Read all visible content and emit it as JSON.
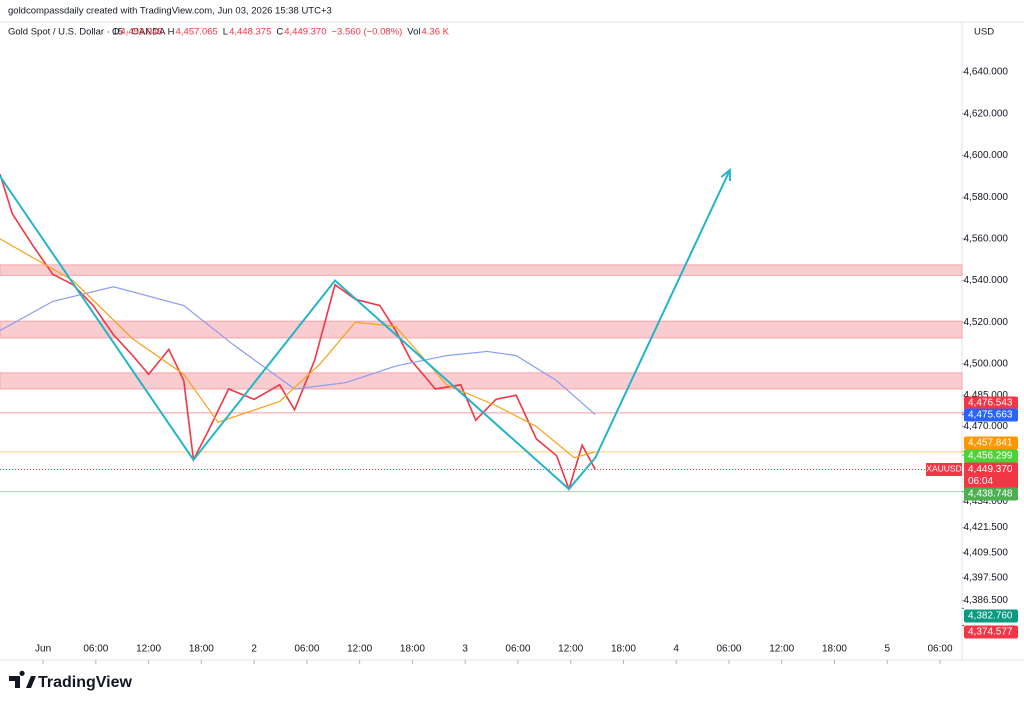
{
  "chart_data": {
    "type": "line",
    "attribution": "goldcompassdaily created with TradingView.com, Jun 03, 2026 15:38 UTC+3",
    "title": "Gold Spot / U.S. Dollar · 15 · OANDA",
    "ohlc": [
      {
        "key": "O",
        "text": "4,453.045"
      },
      {
        "key": "H",
        "text": "4,457.065"
      },
      {
        "key": "L",
        "text": "4,448.375"
      },
      {
        "key": "C",
        "text": "4,449.370"
      }
    ],
    "change": "−3.560 (−0.08%)",
    "volume_key": "Vol",
    "volume": "4.36 K",
    "currency": "USD",
    "brand": "TradingView",
    "xlim": [
      -4.9,
      104.5
    ],
    "ylim": [
      4358,
      4664
    ],
    "xticks": [
      {
        "value": 0,
        "label": "Jun"
      },
      {
        "value": 6,
        "label": "06:00"
      },
      {
        "value": 12,
        "label": "12:00"
      },
      {
        "value": 18,
        "label": "18:00"
      },
      {
        "value": 24,
        "label": "2"
      },
      {
        "value": 30,
        "label": "06:00"
      },
      {
        "value": 36,
        "label": "12:00"
      },
      {
        "value": 42,
        "label": "18:00"
      },
      {
        "value": 48,
        "label": "3"
      },
      {
        "value": 54,
        "label": "06:00"
      },
      {
        "value": 60,
        "label": "12:00"
      },
      {
        "value": 66,
        "label": "18:00"
      },
      {
        "value": 72,
        "label": "4"
      },
      {
        "value": 78,
        "label": "06:00"
      },
      {
        "value": 84,
        "label": "12:00"
      },
      {
        "value": 90,
        "label": "18:00"
      },
      {
        "value": 96,
        "label": "5"
      },
      {
        "value": 102,
        "label": "06:00"
      }
    ],
    "yticks": [
      {
        "value": 4640,
        "label": "4,640.000"
      },
      {
        "value": 4620,
        "label": "4,620.000"
      },
      {
        "value": 4600,
        "label": "4,600.000"
      },
      {
        "value": 4580,
        "label": "4,580.000"
      },
      {
        "value": 4560,
        "label": "4,560.000"
      },
      {
        "value": 4540,
        "label": "4,540.000"
      },
      {
        "value": 4520,
        "label": "4,520.000"
      },
      {
        "value": 4500,
        "label": "4,500.000"
      },
      {
        "value": 4485,
        "label": "4,485.000"
      },
      {
        "value": 4470,
        "label": "4,470.000"
      },
      {
        "value": 4434,
        "label": "4,434.000"
      },
      {
        "value": 4421.5,
        "label": "4,421.500"
      },
      {
        "value": 4409.5,
        "label": "4,409.500"
      },
      {
        "value": 4397.5,
        "label": "4,397.500"
      },
      {
        "value": 4386.5,
        "label": "4,386.500"
      }
    ],
    "series": [
      {
        "name": "XAUUSD",
        "color": "#f23645",
        "last_label": "4,449.370",
        "countdown": "06:04",
        "x": [
          -4.9,
          -3.5,
          -1.2,
          1.1,
          3.4,
          5.7,
          8,
          10.2,
          12,
          14.3,
          16,
          17.1,
          18.8,
          21.1,
          24,
          26.9,
          28.6,
          30.9,
          33.2,
          35.5,
          38.3,
          40.1,
          41.8,
          44.6,
          47.5,
          49.2,
          51.5,
          53.8,
          56.1,
          58.4,
          59.8,
          61.3,
          62.8
        ],
        "values": [
          4591,
          4572,
          4557,
          4543,
          4538,
          4528,
          4514,
          4504,
          4495,
          4507,
          4492,
          4454,
          4468,
          4488,
          4483,
          4490,
          4478,
          4502,
          4538,
          4531,
          4528,
          4516,
          4502,
          4488,
          4490,
          4473,
          4483,
          4485,
          4464,
          4456,
          4440,
          4461,
          4449.37
        ]
      },
      {
        "color": "#8b9cf4",
        "x": [
          -4.9,
          1.1,
          8,
          16,
          21.7,
          28.6,
          34.4,
          40.1,
          45.9,
          50.5,
          53.8,
          58.4,
          62.8
        ],
        "values": [
          4516,
          4530,
          4537,
          4528,
          4509,
          4488,
          4491,
          4499,
          4504,
          4506,
          4504,
          4492,
          4475.663
        ]
      },
      {
        "color": "#f7a21b",
        "x": [
          -4.9,
          3.4,
          10.2,
          16,
          19.9,
          26.9,
          31.5,
          35.5,
          40.1,
          45.9,
          51.5,
          56.1,
          60.4,
          62.8
        ],
        "values": [
          4560,
          4540,
          4512,
          4495,
          4472,
          4482,
          4500,
          4520,
          4518,
          4490,
          4480,
          4470,
          4455,
          4457.841
        ]
      }
    ],
    "zones": [
      [
        4542.5,
        4547.5
      ],
      [
        4512.5,
        4520.5
      ],
      [
        4488,
        4495.7
      ]
    ],
    "zone_color": "#f7b6ba",
    "arrow": {
      "color": "#22b5c9",
      "x": [
        -4.9,
        17.1,
        33.2,
        59.8,
        62.8,
        78.1
      ],
      "y": [
        4590,
        4454,
        4540,
        4440,
        4455,
        4593
      ]
    },
    "price_labels": [
      {
        "value": 4476.543,
        "label": "4,476.543",
        "color": "#f23645",
        "line": true
      },
      {
        "value": 4475.663,
        "label": "4,475.663",
        "color": "#2962ff",
        "line": false
      },
      {
        "value": 4457.841,
        "label": "4,457.841",
        "color": "#ff9800",
        "line": true
      },
      {
        "value": 4456.299,
        "label": "4,456.299",
        "color": "#4cd137",
        "line": false
      },
      {
        "value": 4438.748,
        "label": "4,438.748",
        "color": "#4caf50",
        "line": true
      },
      {
        "value": 4382.76,
        "label": "4,382.760",
        "color": "#089981",
        "line": false
      },
      {
        "value": 4374.577,
        "label": "4,374.577",
        "color": "#f23645",
        "line": false
      }
    ]
  }
}
